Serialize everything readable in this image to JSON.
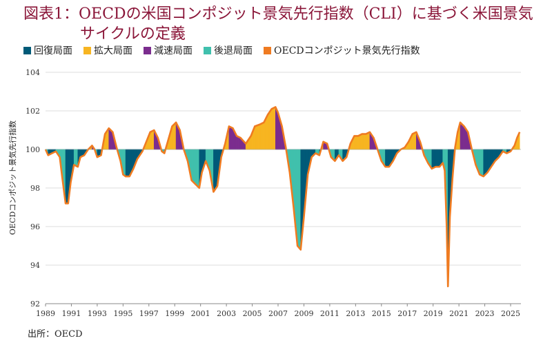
{
  "chart_data": {
    "type": "area",
    "title_line1": "図表1：OECDの米国コンポジット景気先行指数（CLI）に基づく米国景気",
    "title_line2": "サイクルの定義",
    "ylabel": "OECDコンポジット景気先行指数",
    "source": "出所：OECD",
    "ylim": [
      92,
      104
    ],
    "yticks": [
      92,
      94,
      96,
      98,
      100,
      102,
      104
    ],
    "xlim": [
      1989,
      2025.8
    ],
    "xticks": [
      "1989",
      "1991",
      "1993",
      "1995",
      "1997",
      "1999",
      "2001",
      "2003",
      "2005",
      "2007",
      "2009",
      "2011",
      "2013",
      "2015",
      "2017",
      "2019",
      "2021",
      "2023",
      "2025"
    ],
    "baseline": 100,
    "legend": [
      {
        "label": "回復局面",
        "color": "#005a78"
      },
      {
        "label": "拡大局面",
        "color": "#f7b521"
      },
      {
        "label": "減速局面",
        "color": "#7b2d8e"
      },
      {
        "label": "後退局面",
        "color": "#40c0ad"
      },
      {
        "label": "OECDコンポジット景気先行指数",
        "color": "#ef7b21"
      }
    ],
    "phase_colors": {
      "recovery": "#005a78",
      "expansion": "#f7b521",
      "slowdown": "#7b2d8e",
      "recession": "#40c0ad"
    },
    "line_color": "#ef7b21",
    "series": [
      {
        "name": "OECDコンポジット景気先行指数",
        "x": [
          1989.0,
          1989.2,
          1989.5,
          1989.8,
          1990.1,
          1990.3,
          1990.55,
          1990.75,
          1990.95,
          1991.2,
          1991.5,
          1991.7,
          1992.0,
          1992.3,
          1992.6,
          1992.8,
          1993.0,
          1993.3,
          1993.6,
          1993.9,
          1994.2,
          1994.5,
          1994.8,
          1995.0,
          1995.2,
          1995.5,
          1995.8,
          1996.1,
          1996.5,
          1996.8,
          1997.1,
          1997.4,
          1997.7,
          1998.0,
          1998.2,
          1998.5,
          1998.8,
          1999.1,
          1999.4,
          1999.7,
          2000.0,
          2000.3,
          2000.6,
          2000.9,
          2001.1,
          2001.4,
          2001.7,
          2002.0,
          2002.3,
          2002.6,
          2002.9,
          2003.2,
          2003.5,
          2003.8,
          2004.1,
          2004.5,
          2004.9,
          2005.2,
          2005.6,
          2005.9,
          2006.2,
          2006.5,
          2006.8,
          2007.0,
          2007.3,
          2007.6,
          2007.9,
          2008.2,
          2008.5,
          2008.75,
          2009.0,
          2009.3,
          2009.6,
          2009.9,
          2010.2,
          2010.5,
          2010.8,
          2011.1,
          2011.4,
          2011.7,
          2012.0,
          2012.3,
          2012.6,
          2012.9,
          2013.2,
          2013.5,
          2013.8,
          2014.1,
          2014.4,
          2014.7,
          2015.0,
          2015.3,
          2015.6,
          2015.9,
          2016.2,
          2016.5,
          2016.8,
          2017.1,
          2017.4,
          2017.7,
          2018.0,
          2018.3,
          2018.6,
          2018.9,
          2019.2,
          2019.5,
          2019.75,
          2019.9,
          2020.05,
          2020.15,
          2020.3,
          2020.5,
          2020.7,
          2020.9,
          2021.1,
          2021.4,
          2021.7,
          2022.0,
          2022.3,
          2022.6,
          2022.9,
          2023.2,
          2023.5,
          2023.8,
          2024.1,
          2024.4,
          2024.7,
          2025.0,
          2025.3,
          2025.5,
          2025.7
        ],
        "values": [
          100.0,
          99.7,
          99.8,
          99.9,
          99.6,
          98.5,
          97.2,
          97.2,
          98.3,
          99.2,
          99.1,
          99.6,
          99.7,
          100.0,
          100.2,
          100.0,
          99.6,
          99.7,
          100.8,
          101.1,
          100.9,
          100.1,
          99.4,
          98.7,
          98.6,
          98.6,
          99.0,
          99.5,
          99.9,
          100.4,
          100.9,
          101.0,
          100.6,
          99.9,
          99.8,
          100.5,
          101.2,
          101.4,
          101.0,
          100.0,
          99.4,
          98.4,
          98.2,
          98.0,
          98.8,
          99.4,
          98.9,
          97.8,
          98.1,
          99.6,
          100.3,
          101.2,
          101.1,
          100.7,
          100.6,
          100.3,
          100.7,
          101.2,
          101.3,
          101.4,
          101.8,
          102.1,
          102.2,
          101.9,
          101.2,
          100.1,
          98.8,
          97.0,
          95.0,
          94.8,
          96.5,
          98.7,
          99.6,
          99.8,
          99.7,
          100.4,
          100.3,
          99.6,
          99.4,
          99.7,
          99.4,
          99.6,
          100.3,
          100.7,
          100.7,
          100.8,
          100.8,
          100.9,
          100.6,
          100.0,
          99.4,
          99.1,
          99.1,
          99.4,
          99.8,
          100.0,
          100.1,
          100.4,
          100.8,
          100.9,
          100.4,
          99.7,
          99.3,
          99.0,
          99.1,
          99.1,
          99.3,
          98.9,
          96.0,
          92.9,
          96.5,
          98.5,
          100.1,
          100.9,
          101.4,
          101.2,
          100.9,
          100.0,
          99.2,
          98.7,
          98.6,
          98.8,
          99.1,
          99.4,
          99.6,
          99.9,
          99.8,
          99.9,
          100.2,
          100.6,
          100.9
        ]
      }
    ]
  },
  "header": {
    "title_line1": "図表1：OECDの米国コンポジット景気先行指数（CLI）に基づく米国景気",
    "title_line2": "サイクルの定義"
  },
  "legend": [
    "回復局面",
    "拡大局面",
    "減速局面",
    "後退局面",
    "OECDコンポジット景気先行指数"
  ],
  "footer": {
    "source": "出所：OECD"
  }
}
